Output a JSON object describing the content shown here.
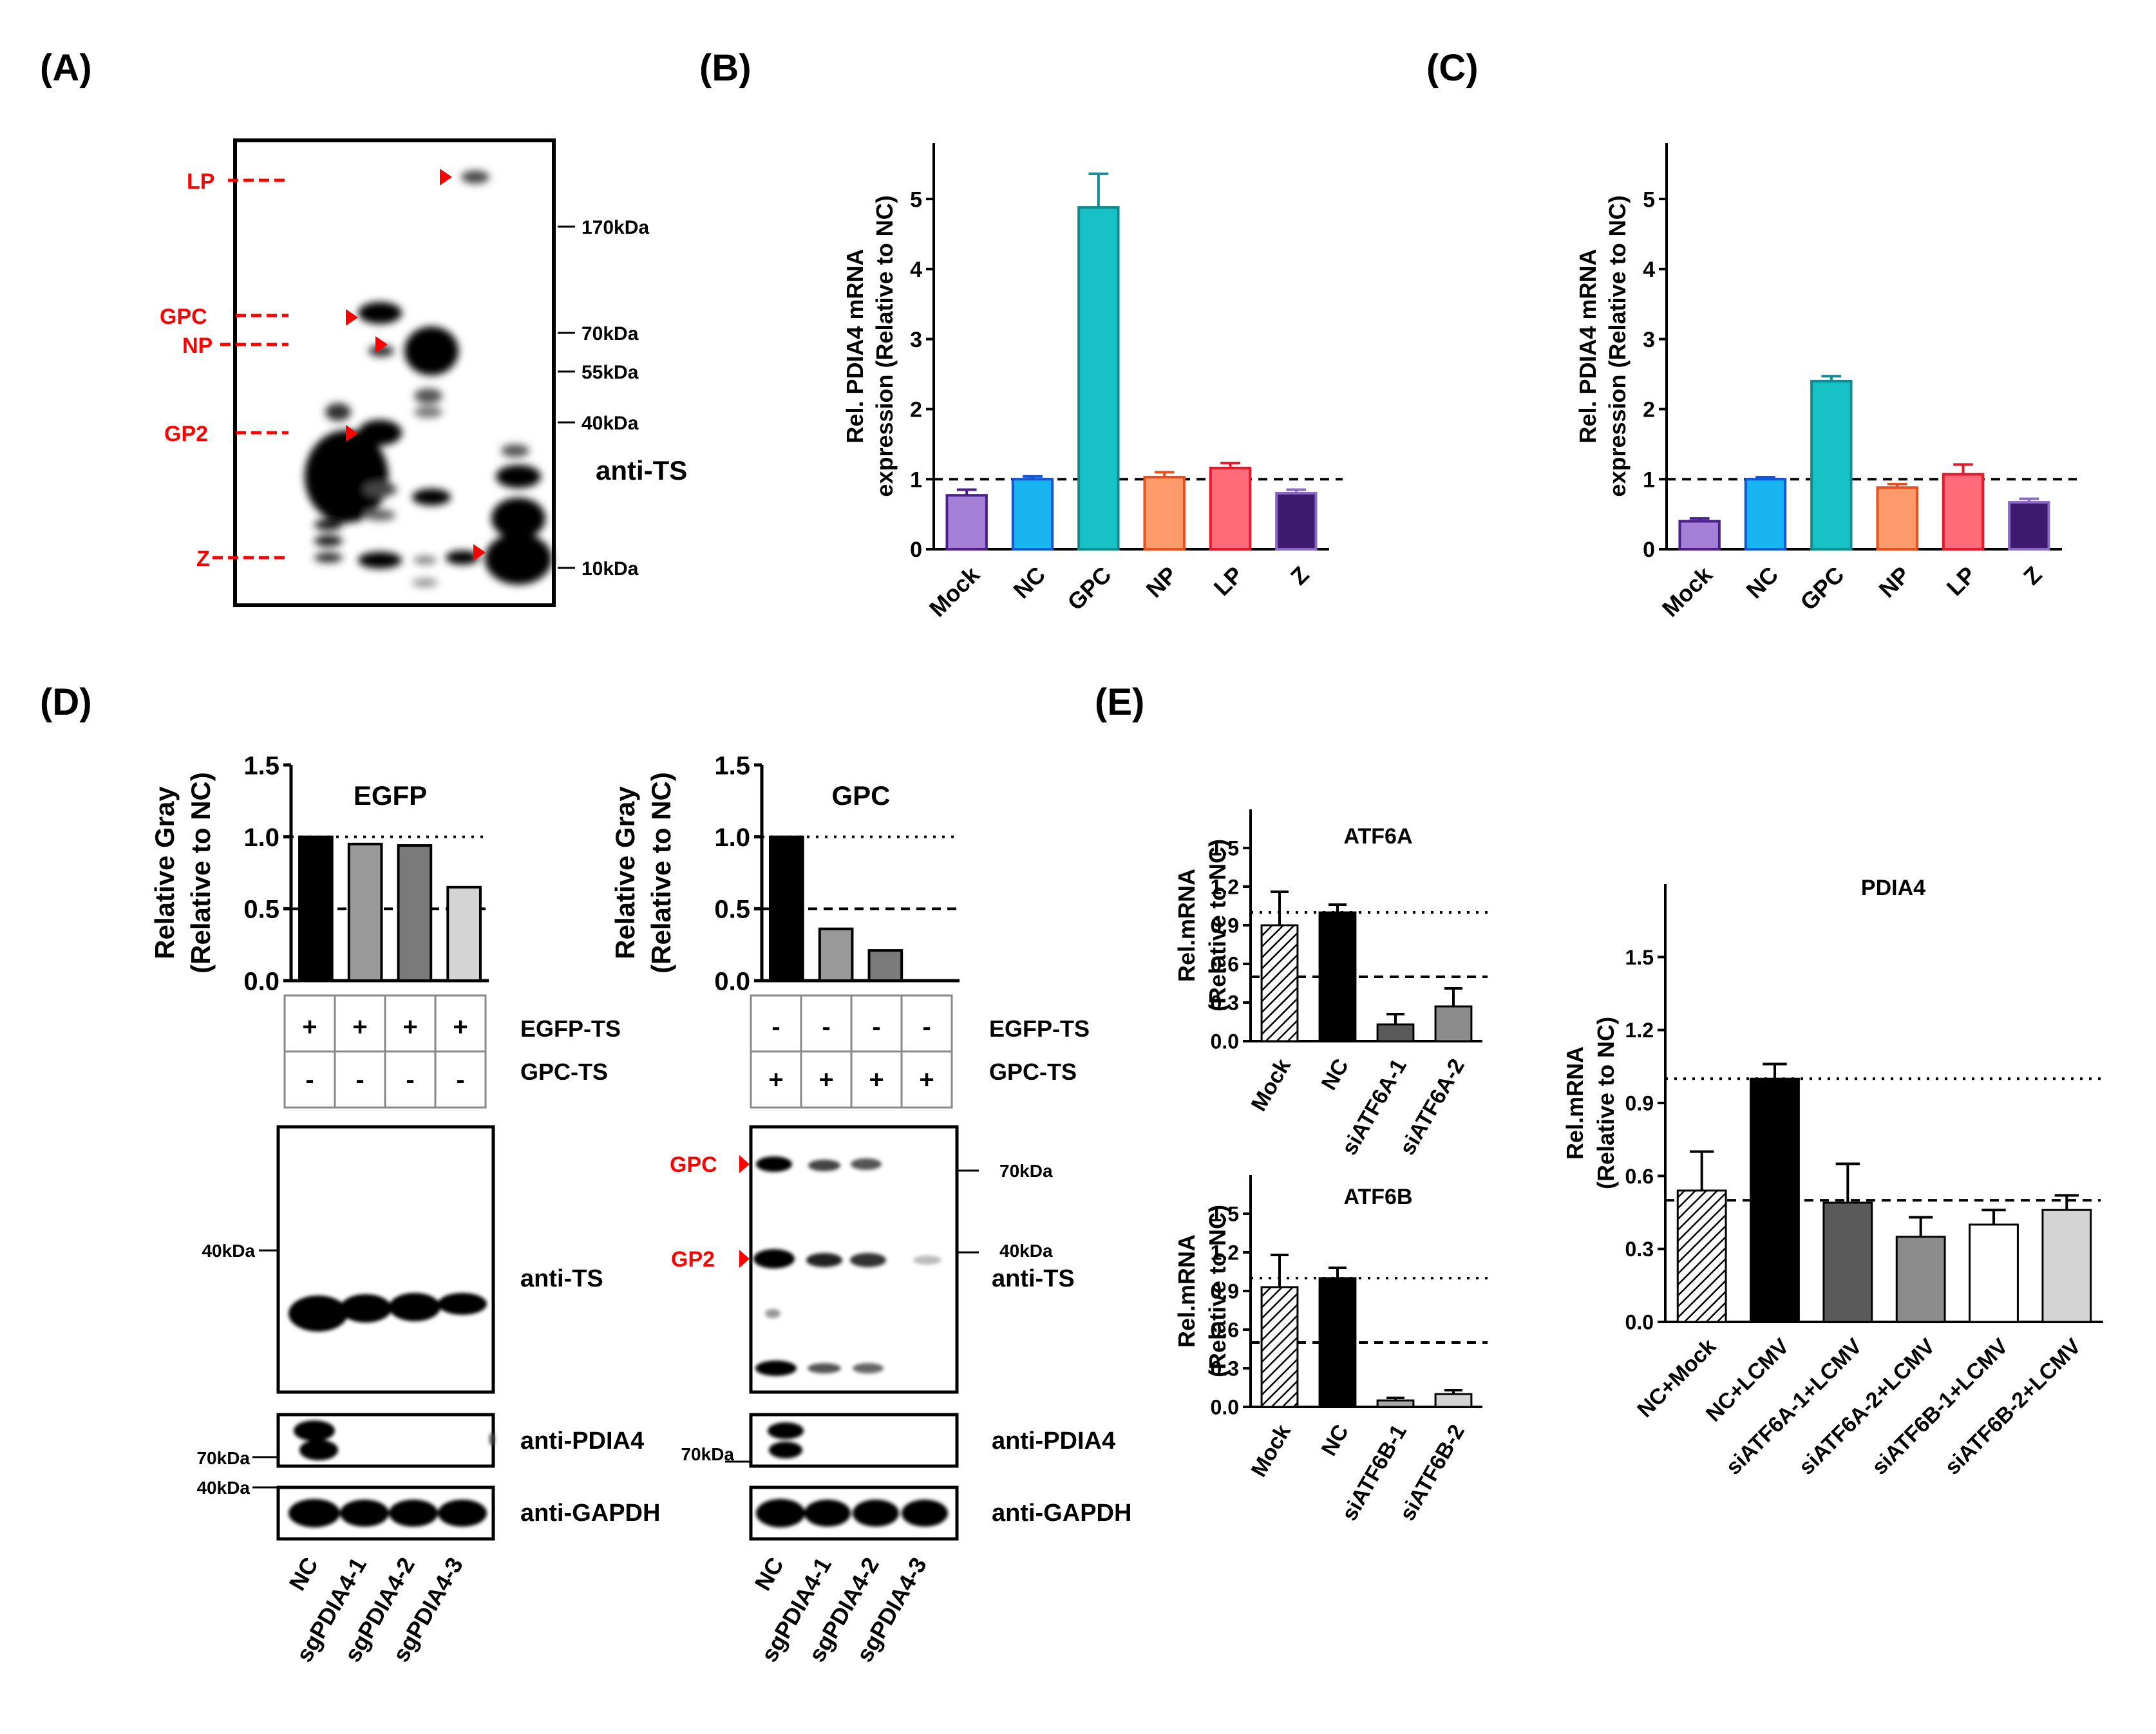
{
  "panels": {
    "A": {
      "label": "(A)",
      "bands": [
        "LP",
        "GPC",
        "NP",
        "GP2",
        "Z"
      ],
      "markers": [
        "170kDa",
        "70kDa",
        "55kDa",
        "40kDa",
        "10kDa"
      ],
      "antibody": "anti-TS"
    },
    "B": {
      "label": "(B)"
    },
    "C": {
      "label": "(C)"
    },
    "D": {
      "label": "(D)",
      "left": {
        "title": "EGFP",
        "row1_label": "EGFP-TS",
        "row2_label": "GPC-TS",
        "row1_signs": [
          "+",
          "+",
          "+",
          "+"
        ],
        "row2_signs": [
          "-",
          "-",
          "-",
          "-"
        ],
        "marker_ts": "40kDa",
        "marker_pdia4": "70kDa",
        "marker_gapdh": "40kDa",
        "blot_ts": "anti-TS",
        "blot_pdia4": "anti-PDIA4",
        "blot_gapdh": "anti-GAPDH",
        "lanes": [
          "NC",
          "sgPDIA4-1",
          "sgPDIA4-2",
          "sgPDIA4-3"
        ]
      },
      "right": {
        "title": "GPC",
        "row1_label": "EGFP-TS",
        "row2_label": "GPC-TS",
        "row1_signs": [
          "-",
          "-",
          "-",
          "-"
        ],
        "row2_signs": [
          "+",
          "+",
          "+",
          "+"
        ],
        "band_gpc": "GPC",
        "band_gp2": "GP2",
        "marker_70": "70kDa",
        "marker_40": "40kDa",
        "marker_pdia4": "70kDa",
        "blot_ts": "anti-TS",
        "blot_pdia4": "anti-PDIA4",
        "blot_gapdh": "anti-GAPDH",
        "lanes": [
          "NC",
          "sgPDIA4-1",
          "sgPDIA4-2",
          "sgPDIA4-3"
        ]
      }
    },
    "E": {
      "label": "(E)"
    }
  },
  "chart_data": [
    {
      "id": "B",
      "type": "bar",
      "title": "",
      "ylabel": [
        "Rel. PDIA4 mRNA",
        "expression (Relative to NC)"
      ],
      "categories": [
        "Mock",
        "NC",
        "GPC",
        "NP",
        "LP",
        "Z"
      ],
      "values": [
        0.77,
        1.0,
        4.88,
        1.03,
        1.16,
        0.8
      ],
      "errors": [
        0.08,
        0.04,
        0.48,
        0.07,
        0.07,
        0.05
      ],
      "colors": [
        "#a67fd6",
        "#19b5f2",
        "#17c2c6",
        "#ff9a6b",
        "#ff6b78",
        "#3d1a6e"
      ],
      "edges": [
        "#4a1f8c",
        "#1256d9",
        "#138a8f",
        "#e8501f",
        "#e4192b",
        "#8a6bc4"
      ],
      "ylim": [
        0,
        5.8
      ],
      "yticks": [
        "0",
        "1",
        "2",
        "3",
        "4",
        "5"
      ],
      "reference": 1
    },
    {
      "id": "C",
      "type": "bar",
      "title": "",
      "ylabel": [
        "Rel. PDIA4 mRNA",
        "expression (Relative to NC)"
      ],
      "categories": [
        "Mock",
        "NC",
        "GPC",
        "NP",
        "LP",
        "Z"
      ],
      "values": [
        0.4,
        1.0,
        2.4,
        0.88,
        1.07,
        0.67
      ],
      "errors": [
        0.04,
        0.03,
        0.07,
        0.05,
        0.14,
        0.05
      ],
      "colors": [
        "#a67fd6",
        "#19b5f2",
        "#17c2c6",
        "#ff9a6b",
        "#ff6b78",
        "#3d1a6e"
      ],
      "edges": [
        "#4a1f8c",
        "#1256d9",
        "#138a8f",
        "#e8501f",
        "#e4192b",
        "#8a6bc4"
      ],
      "ylim": [
        0,
        5.8
      ],
      "yticks": [
        "0",
        "1",
        "2",
        "3",
        "4",
        "5"
      ],
      "reference": 1
    },
    {
      "id": "D-EGFP",
      "type": "bar",
      "title": "EGFP",
      "ylabel": [
        "Relative Gray",
        "(Relative to NC)"
      ],
      "categories": [
        "NC",
        "sgPDIA4-1",
        "sgPDIA4-2",
        "sgPDIA4-3"
      ],
      "values": [
        1.0,
        0.95,
        0.94,
        0.65
      ],
      "colors": [
        "#000000",
        "#9a9a9a",
        "#7a7a7a",
        "#d4d4d4"
      ],
      "ylim": [
        0,
        1.5
      ],
      "yticks": [
        "0.0",
        "0.5",
        "1.0",
        "1.5"
      ]
    },
    {
      "id": "D-GPC",
      "type": "bar",
      "title": "GPC",
      "ylabel": [
        "Relative Gray",
        "(Relative to NC)"
      ],
      "categories": [
        "NC",
        "sgPDIA4-1",
        "sgPDIA4-2",
        "sgPDIA4-3"
      ],
      "values": [
        1.0,
        0.36,
        0.21,
        0.0
      ],
      "colors": [
        "#000000",
        "#9a9a9a",
        "#7a7a7a",
        "#d4d4d4"
      ],
      "ylim": [
        0,
        1.5
      ],
      "yticks": [
        "0.0",
        "0.5",
        "1.0",
        "1.5"
      ]
    },
    {
      "id": "E-ATF6A",
      "type": "bar",
      "title": "ATF6A",
      "ylabel": [
        "Rel.mRNA",
        "(Relative to NC)"
      ],
      "categories": [
        "Mock",
        "NC",
        "siATF6A-1",
        "siATF6A-2"
      ],
      "values": [
        0.9,
        1.0,
        0.13,
        0.27
      ],
      "errors": [
        0.26,
        0.06,
        0.08,
        0.14
      ],
      "colors": [
        "hatch",
        "#000000",
        "#5a5a5a",
        "#8c8c8c"
      ],
      "ylim": [
        0,
        1.8
      ],
      "yticks": [
        "0.0",
        "0.3",
        "0.6",
        "0.9",
        "1.2",
        "1.5"
      ]
    },
    {
      "id": "E-ATF6B",
      "type": "bar",
      "title": "ATF6B",
      "ylabel": [
        "Rel.mRNA",
        "(Relative to NC)"
      ],
      "categories": [
        "Mock",
        "NC",
        "siATF6B-1",
        "siATF6B-2"
      ],
      "values": [
        0.93,
        1.0,
        0.05,
        0.1
      ],
      "errors": [
        0.25,
        0.08,
        0.02,
        0.03
      ],
      "colors": [
        "hatch",
        "#000000",
        "#a9a9a9",
        "#d4d4d4"
      ],
      "ylim": [
        0,
        1.8
      ],
      "yticks": [
        "0.0",
        "0.3",
        "0.6",
        "0.9",
        "1.2",
        "1.5"
      ]
    },
    {
      "id": "E-PDIA4",
      "type": "bar",
      "title": "PDIA4",
      "ylabel": [
        "Rel.mRNA",
        "(Relative to NC)"
      ],
      "categories": [
        "NC+Mock",
        "NC+LCMV",
        "siATF6A-1+LCMV",
        "siATF6A-2+LCMV",
        "siATF6B-1+LCMV",
        "siATF6B-2+LCMV"
      ],
      "values": [
        0.54,
        1.0,
        0.49,
        0.35,
        0.4,
        0.46
      ],
      "errors": [
        0.16,
        0.06,
        0.16,
        0.08,
        0.06,
        0.06
      ],
      "colors": [
        "hatch",
        "#000000",
        "#5a5a5a",
        "#8c8c8c",
        "#ffffff",
        "#d4d4d4"
      ],
      "ylim": [
        0,
        1.8
      ],
      "yticks": [
        "0.0",
        "0.3",
        "0.6",
        "0.9",
        "1.2",
        "1.5"
      ]
    }
  ]
}
